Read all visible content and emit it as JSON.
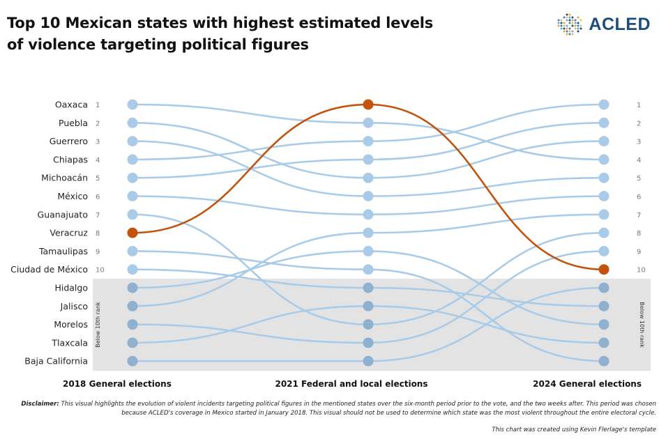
{
  "header": {
    "title_line1": "Top 10 Mexican states with highest estimated levels",
    "title_line2": "of violence targeting political figures",
    "logo_text": "ACLED"
  },
  "chart_data": {
    "type": "bump",
    "title": "Top 10 Mexican states with highest estimated levels of violence targeting political figures",
    "columns": [
      "2018 General elections",
      "2021 Federal and local elections",
      "2024 General elections"
    ],
    "rank_labels": [
      "1",
      "2",
      "3",
      "4",
      "5",
      "6",
      "7",
      "8",
      "9",
      "10"
    ],
    "below_band_label": "Below 10th rank",
    "highlight": "Veracruz",
    "colors": {
      "line": "#a9cbe8",
      "dot": "#a9cbe8",
      "dot_below": "#8fb0cf",
      "highlight": "#c2520c",
      "band": "#e3e3e3"
    },
    "series": [
      {
        "name": "Oaxaca",
        "ranks": [
          1,
          2,
          4
        ]
      },
      {
        "name": "Puebla",
        "ranks": [
          2,
          5,
          3
        ]
      },
      {
        "name": "Guerrero",
        "ranks": [
          3,
          6,
          5
        ]
      },
      {
        "name": "Chiapas",
        "ranks": [
          4,
          3,
          1
        ]
      },
      {
        "name": "Michoacán",
        "ranks": [
          5,
          4,
          2
        ]
      },
      {
        "name": "México",
        "ranks": [
          6,
          7,
          6
        ]
      },
      {
        "name": "Guanajuato",
        "ranks": [
          7,
          13,
          8
        ]
      },
      {
        "name": "Veracruz",
        "ranks": [
          8,
          1,
          10
        ]
      },
      {
        "name": "Tamaulipas",
        "ranks": [
          9,
          10,
          15
        ]
      },
      {
        "name": "Ciudad de México",
        "ranks": [
          10,
          11,
          12
        ]
      },
      {
        "name": "Hidalgo",
        "ranks": [
          11,
          9,
          13
        ]
      },
      {
        "name": "Jalisco",
        "ranks": [
          12,
          8,
          7
        ]
      },
      {
        "name": "Morelos",
        "ranks": [
          13,
          14,
          9
        ]
      },
      {
        "name": "Tlaxcala",
        "ranks": [
          14,
          12,
          14
        ]
      },
      {
        "name": "Baja California",
        "ranks": [
          15,
          15,
          11
        ]
      }
    ]
  },
  "footer": {
    "disclaimer_label": "Disclaimer:",
    "disclaimer_text": " This visual highlights the evolution of violent incidents targeting political figures in the mentioned states over the six-month period prior to the vote, and the two weeks after. This period was chosen because ACLED's coverage in Mexico started in January 2018. This visual should not be used to determine which state was the most violent throughout the entire electoral cycle.",
    "credit": "This chart was created using Kevin Flerlage's template"
  }
}
